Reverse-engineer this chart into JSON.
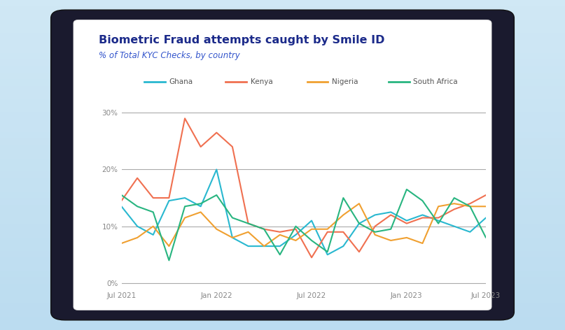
{
  "title": "Biometric Fraud attempts caught by Smile ID",
  "subtitle": "% of Total KYC Checks, by country",
  "title_color": "#1b2a8a",
  "subtitle_color": "#3355cc",
  "bg_gradient_top": "#d0e8f5",
  "bg_gradient_bot": "#c8e4f4",
  "background_card": "#ffffff",
  "tablet_bezel": "#1a1a2e",
  "legend_text_color": "#555555",
  "tick_color": "#888888",
  "grid_color": "#aaaaaa",
  "colors": {
    "Ghana": "#29b8d0",
    "Kenya": "#f07050",
    "Nigeria": "#f0a030",
    "South Africa": "#28b580"
  },
  "x_labels": [
    "Jul 2021",
    "Jan 2022",
    "Jul 2022",
    "Jan 2023",
    "Jul 2023"
  ],
  "y_ticks": [
    0,
    10,
    20,
    30
  ],
  "y_labels": [
    "0%",
    "10%",
    "20%",
    "30%"
  ],
  "Ghana": [
    13.5,
    10.0,
    8.5,
    14.5,
    15.0,
    13.5,
    20.0,
    8.0,
    6.5,
    6.5,
    6.5,
    8.5,
    11.0,
    5.0,
    6.5,
    10.5,
    12.0,
    12.5,
    11.0,
    12.0,
    11.0,
    10.0,
    9.0,
    11.5
  ],
  "Kenya": [
    14.5,
    18.5,
    15.0,
    15.0,
    29.0,
    24.0,
    26.5,
    24.0,
    10.5,
    9.5,
    9.0,
    9.5,
    4.5,
    9.0,
    9.0,
    5.5,
    10.0,
    12.0,
    10.5,
    11.5,
    11.5,
    13.0,
    14.0,
    15.5
  ],
  "Nigeria": [
    7.0,
    8.0,
    10.0,
    6.5,
    11.5,
    12.5,
    9.5,
    8.0,
    9.0,
    6.5,
    8.5,
    7.5,
    9.5,
    9.5,
    12.0,
    14.0,
    8.5,
    7.5,
    8.0,
    7.0,
    13.5,
    14.0,
    13.5,
    13.5
  ],
  "South Africa": [
    15.5,
    13.5,
    12.5,
    4.0,
    13.5,
    14.0,
    15.5,
    11.5,
    10.5,
    9.5,
    5.0,
    10.0,
    7.5,
    5.5,
    15.0,
    10.5,
    9.0,
    9.5,
    16.5,
    14.5,
    10.5,
    15.0,
    13.5,
    8.0
  ],
  "figsize": [
    8.07,
    4.72
  ],
  "dpi": 100
}
